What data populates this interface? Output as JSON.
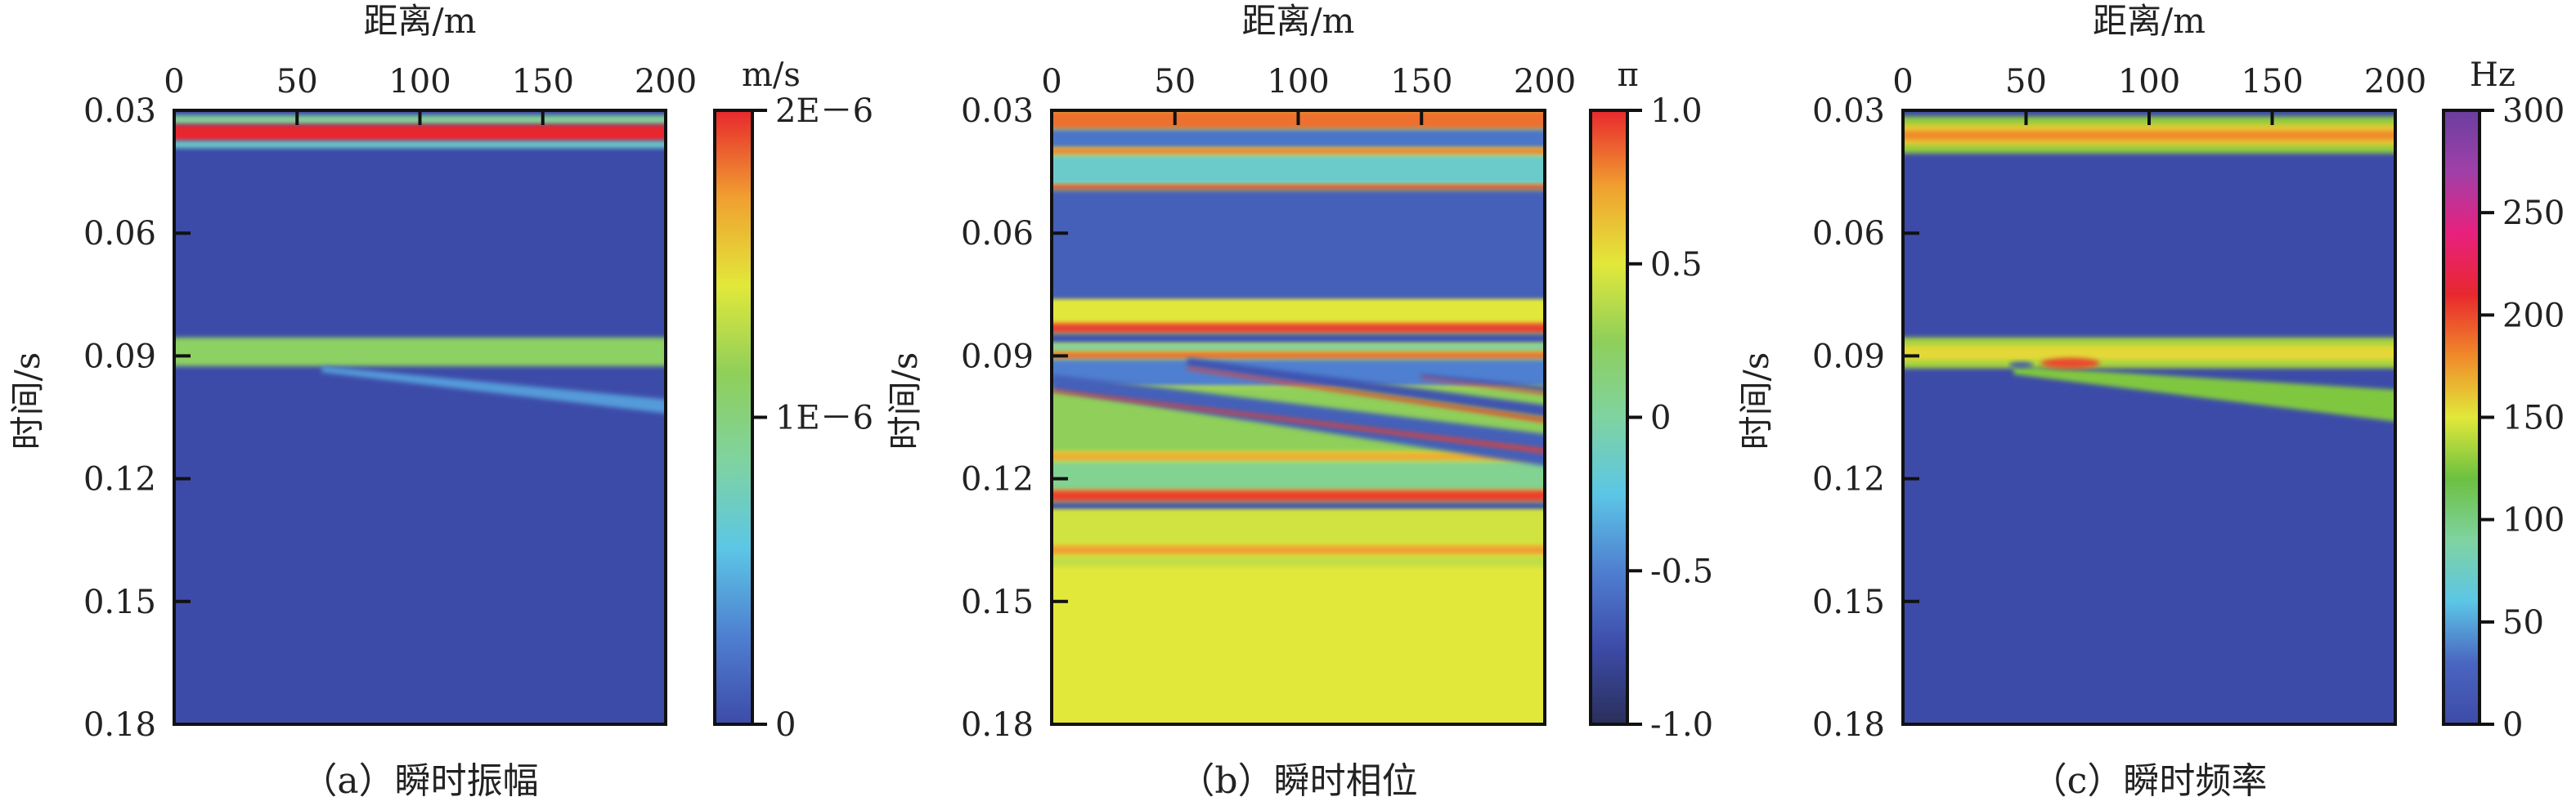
{
  "chart_data": [
    {
      "type": "heatmap",
      "caption": "（a）瞬时振幅",
      "xlabel": "距离/m",
      "ylabel": "时间/s",
      "xlim": [
        0,
        200
      ],
      "ylim": [
        0.03,
        0.18
      ],
      "xticks": [
        "0",
        "50",
        "100",
        "150",
        "200"
      ],
      "xtick_values": [
        0,
        50,
        100,
        150,
        200
      ],
      "yticks": [
        "0.03",
        "0.06",
        "0.09",
        "0.12",
        "0.15",
        "0.18"
      ],
      "ytick_values": [
        0.03,
        0.06,
        0.09,
        0.12,
        0.15,
        0.18
      ],
      "colorbar": {
        "unit": "m/s",
        "range": [
          0,
          1
        ],
        "ticks": [
          "0",
          "1E－6",
          "2E－6"
        ],
        "tick_values": [
          0,
          0.5,
          1
        ],
        "stops": [
          "#3d4ba8",
          "#4f7fd0",
          "#5cc6e6",
          "#7fd3a0",
          "#8fcf5a",
          "#e2e83a",
          "#f0a030",
          "#e8282e"
        ]
      },
      "background": 0,
      "features": [
        {
          "kind": "band",
          "t": [
            0.0312,
            0.0335
          ],
          "v": 0.45
        },
        {
          "kind": "band",
          "t": [
            0.0335,
            0.0375
          ],
          "v": 1.0
        },
        {
          "kind": "band",
          "t": [
            0.0375,
            0.0392
          ],
          "v": 0.35
        },
        {
          "kind": "band",
          "t": [
            0.0855,
            0.0925
          ],
          "v": 0.55
        },
        {
          "kind": "slant",
          "x": [
            60,
            200
          ],
          "t_top": [
            0.0925,
            0.101
          ],
          "t_bot": [
            0.094,
            0.1045
          ],
          "v": 0.2
        }
      ]
    },
    {
      "type": "heatmap",
      "caption": "（b）瞬时相位",
      "xlabel": "距离/m",
      "ylabel": "时间/s",
      "xlim": [
        0,
        200
      ],
      "ylim": [
        0.03,
        0.18
      ],
      "xticks": [
        "0",
        "50",
        "100",
        "150",
        "200"
      ],
      "xtick_values": [
        0,
        50,
        100,
        150,
        200
      ],
      "yticks": [
        "0.03",
        "0.06",
        "0.09",
        "0.12",
        "0.15",
        "0.18"
      ],
      "ytick_values": [
        0.03,
        0.06,
        0.09,
        0.12,
        0.15,
        0.18
      ],
      "colorbar": {
        "unit": "π",
        "range": [
          -1,
          1
        ],
        "ticks": [
          "-1.0",
          "-0.5",
          "0",
          "0.5",
          "1.0"
        ],
        "tick_values": [
          -1,
          -0.5,
          0,
          0.5,
          1
        ],
        "stops": [
          "#2a2f5a",
          "#3d4ba8",
          "#4f7fd0",
          "#5cc6e6",
          "#7fd3a0",
          "#8fcf5a",
          "#e2e83a",
          "#f0a030",
          "#e8282e"
        ]
      },
      "background": 0.5,
      "features": [
        {
          "kind": "band",
          "t": [
            0.03,
            0.0346
          ],
          "v": 0.85
        },
        {
          "kind": "band",
          "t": [
            0.0346,
            0.0392
          ],
          "v": -0.55
        },
        {
          "kind": "band",
          "t": [
            0.0392,
            0.041
          ],
          "v": 0.8
        },
        {
          "kind": "band",
          "t": [
            0.041,
            0.0482
          ],
          "v": -0.15
        },
        {
          "kind": "band",
          "t": [
            0.0482,
            0.0494
          ],
          "v": 0.95
        },
        {
          "kind": "band",
          "t": [
            0.0494,
            0.0764
          ],
          "v": -0.65
        },
        {
          "kind": "band",
          "t": [
            0.0764,
            0.082
          ],
          "v": 0.5
        },
        {
          "kind": "band",
          "t": [
            0.082,
            0.0845
          ],
          "v": 0.95
        },
        {
          "kind": "band",
          "t": [
            0.0845,
            0.087
          ],
          "v": -0.7
        },
        {
          "kind": "band",
          "t": [
            0.087,
            0.089
          ],
          "v": 0.0
        },
        {
          "kind": "band",
          "t": [
            0.089,
            0.0908
          ],
          "v": 0.85
        },
        {
          "kind": "band",
          "t": [
            0.0908,
            0.0975
          ],
          "v": -0.5
        },
        {
          "kind": "band",
          "t": [
            0.0975,
            0.1135
          ],
          "v": 0.25
        },
        {
          "kind": "band",
          "t": [
            0.1135,
            0.1158
          ],
          "v": 0.7
        },
        {
          "kind": "band",
          "t": [
            0.1158,
            0.1228
          ],
          "v": 0.05
        },
        {
          "kind": "band",
          "t": [
            0.1228,
            0.1257
          ],
          "v": 0.95
        },
        {
          "kind": "band",
          "t": [
            0.1257,
            0.1277
          ],
          "v": -0.7
        },
        {
          "kind": "band",
          "t": [
            0.1277,
            0.1363
          ],
          "v": 0.45
        },
        {
          "kind": "band",
          "t": [
            0.1363,
            0.1388
          ],
          "v": 0.75
        },
        {
          "kind": "band",
          "t": [
            0.1388,
            0.1415
          ],
          "v": 0.4
        },
        {
          "kind": "slant",
          "x": [
            0,
            200
          ],
          "t_top": [
            0.0945,
            0.1095
          ],
          "t_bot": [
            0.0985,
            0.1175
          ],
          "v": -0.65
        },
        {
          "kind": "slant",
          "x": [
            0,
            200
          ],
          "t_top": [
            0.0982,
            0.1132
          ],
          "t_bot": [
            0.0988,
            0.1142
          ],
          "v": 0.95
        },
        {
          "kind": "slant",
          "x": [
            55,
            200
          ],
          "t_top": [
            0.0905,
            0.1025
          ],
          "t_bot": [
            0.0925,
            0.1055
          ],
          "v": -0.7
        },
        {
          "kind": "slant",
          "x": [
            55,
            200
          ],
          "t_top": [
            0.0927,
            0.1058
          ],
          "t_bot": [
            0.0933,
            0.1068
          ],
          "v": 0.95
        },
        {
          "kind": "slant",
          "x": [
            150,
            200
          ],
          "t_top": [
            0.0945,
            0.0978
          ],
          "t_bot": [
            0.0952,
            0.0992
          ],
          "v": -0.7
        },
        {
          "kind": "slant",
          "x": [
            150,
            200
          ],
          "t_top": [
            0.0952,
            0.0993
          ],
          "t_bot": [
            0.0956,
            0.0999
          ],
          "v": 0.95
        }
      ]
    },
    {
      "type": "heatmap",
      "caption": "（c）瞬时频率",
      "xlabel": "距离/m",
      "ylabel": "时间/s",
      "xlim": [
        0,
        200
      ],
      "ylim": [
        0.03,
        0.18
      ],
      "xticks": [
        "0",
        "50",
        "100",
        "150",
        "200"
      ],
      "xtick_values": [
        0,
        50,
        100,
        150,
        200
      ],
      "yticks": [
        "0.03",
        "0.06",
        "0.09",
        "0.12",
        "0.15",
        "0.18"
      ],
      "ytick_values": [
        0.03,
        0.06,
        0.09,
        0.12,
        0.15,
        0.18
      ],
      "colorbar": {
        "unit": "Hz",
        "range": [
          0,
          300
        ],
        "ticks": [
          "0",
          "50",
          "100",
          "150",
          "200",
          "250",
          "300"
        ],
        "tick_values": [
          0,
          50,
          100,
          150,
          200,
          250,
          300
        ],
        "stops": [
          "#3d4ba8",
          "#4a66c0",
          "#5cc6e6",
          "#7fd3a0",
          "#6cc040",
          "#e2e83a",
          "#f08a2a",
          "#e8282e",
          "#e8207e",
          "#a040a8",
          "#6a3ea0"
        ]
      },
      "background": 0,
      "features": [
        {
          "kind": "band",
          "t": [
            0.0315,
            0.0405
          ],
          "v": 130
        },
        {
          "kind": "band",
          "t": [
            0.0335,
            0.0385
          ],
          "v": 160
        },
        {
          "kind": "band",
          "t": [
            0.035,
            0.0372
          ],
          "v": 180
        },
        {
          "kind": "band",
          "t": [
            0.0855,
            0.093
          ],
          "v": 135
        },
        {
          "kind": "band",
          "t": [
            0.0875,
            0.091
          ],
          "v": 155
        },
        {
          "kind": "slant",
          "x": [
            45,
            200
          ],
          "t_top": [
            0.0925,
            0.0985
          ],
          "t_bot": [
            0.0945,
            0.1065
          ],
          "v": 125
        },
        {
          "kind": "blob",
          "x": 68,
          "t": 0.0918,
          "rx": 12,
          "rt": 0.0013,
          "v": 200
        },
        {
          "kind": "blob",
          "x": 48,
          "t": 0.0922,
          "rx": 5,
          "rt": 0.0007,
          "v": 10
        }
      ]
    }
  ]
}
